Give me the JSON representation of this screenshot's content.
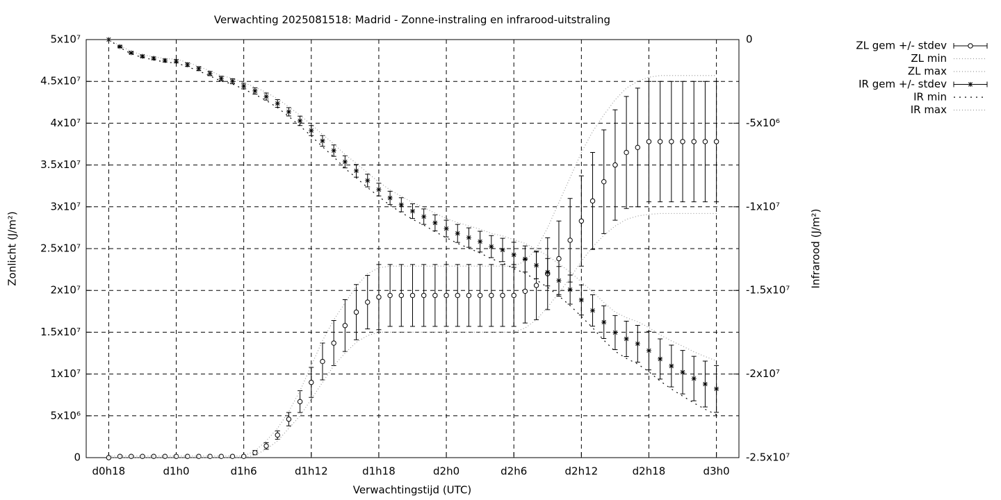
{
  "chart_data": {
    "type": "errorbar",
    "title": "Verwachting 2025081518: Madrid - Zonne-instraling en infrarood-uitstraling",
    "xlabel": "Verwachtingstijd (UTC)",
    "ylabel": "Zonlicht (J/m²)",
    "y2label": "Infrarood (J/m²)",
    "grid": true,
    "legend": "outside-top-right",
    "xlim": [
      16,
      74
    ],
    "xticks": [
      {
        "value": 18,
        "label": "d0h18"
      },
      {
        "value": 24,
        "label": "d1h0"
      },
      {
        "value": 30,
        "label": "d1h6"
      },
      {
        "value": 36,
        "label": "d1h12"
      },
      {
        "value": 42,
        "label": "d1h18"
      },
      {
        "value": 48,
        "label": "d2h0"
      },
      {
        "value": 54,
        "label": "d2h6"
      },
      {
        "value": 60,
        "label": "d2h12"
      },
      {
        "value": 66,
        "label": "d2h18"
      },
      {
        "value": 72,
        "label": "d3h0"
      }
    ],
    "ylim": [
      0,
      50000000
    ],
    "yticks": [
      0,
      {
        "value": 5000000,
        "label": "5x10⁶"
      },
      {
        "value": 10000000,
        "label": "1x10⁷"
      },
      {
        "value": 15000000,
        "label": "1.5x10⁷"
      },
      {
        "value": 20000000,
        "label": "2x10⁷"
      },
      {
        "value": 25000000,
        "label": "2.5x10⁷"
      },
      {
        "value": 30000000,
        "label": "3x10⁷"
      },
      {
        "value": 35000000,
        "label": "3.5x10⁷"
      },
      {
        "value": 40000000,
        "label": "4x10⁷"
      },
      {
        "value": 45000000,
        "label": "4.5x10⁷"
      },
      {
        "value": 50000000,
        "label": "5x10⁷"
      }
    ],
    "y2lim": [
      -25000000,
      0
    ],
    "y2ticks": [
      0,
      {
        "value": -5000000,
        "label": "-5x10⁶"
      },
      {
        "value": -10000000,
        "label": "-1x10⁷"
      },
      {
        "value": -15000000,
        "label": "-1.5x10⁷"
      },
      {
        "value": -20000000,
        "label": "-2x10⁷"
      },
      {
        "value": -25000000,
        "label": "-2.5x10⁷"
      }
    ],
    "x": [
      18,
      19,
      20,
      21,
      22,
      23,
      24,
      25,
      26,
      27,
      28,
      29,
      30,
      31,
      32,
      33,
      34,
      35,
      36,
      37,
      38,
      39,
      40,
      41,
      42,
      43,
      44,
      45,
      46,
      47,
      48,
      49,
      50,
      51,
      52,
      53,
      54,
      55,
      56,
      57,
      58,
      59,
      60,
      61,
      62,
      63,
      64,
      65,
      66,
      67,
      68,
      69,
      70,
      71,
      72
    ],
    "series": [
      {
        "name": "ZL gem +/- stdev",
        "kind": "errorbar",
        "marker": "circle",
        "color": "#000000",
        "values": [
          0,
          150000,
          150000,
          150000,
          150000,
          150000,
          150000,
          150000,
          150000,
          150000,
          150000,
          150000,
          150000,
          600000,
          1400000,
          2700000,
          4600000,
          6700000,
          9000000,
          11500000,
          13700000,
          15800000,
          17400000,
          18600000,
          19200000,
          19400000,
          19400000,
          19400000,
          19400000,
          19400000,
          19400000,
          19400000,
          19400000,
          19400000,
          19400000,
          19400000,
          19400000,
          19900000,
          20600000,
          22000000,
          23800000,
          26000000,
          28300000,
          30700000,
          33000000,
          35000000,
          36500000,
          37100000,
          37800000,
          37800000,
          37800000,
          37800000,
          37800000,
          37800000,
          37800000
        ],
        "errors": [
          0,
          0,
          0,
          0,
          0,
          0,
          0,
          0,
          0,
          0,
          0,
          0,
          0,
          250000,
          400000,
          500000,
          800000,
          1300000,
          1800000,
          2200000,
          2700000,
          3100000,
          3300000,
          3200000,
          3900000,
          3700000,
          3700000,
          3700000,
          3700000,
          3700000,
          3700000,
          3700000,
          3700000,
          3700000,
          3700000,
          3700000,
          3700000,
          3800000,
          4100000,
          4300000,
          4500000,
          5000000,
          5400000,
          5800000,
          6200000,
          6600000,
          6700000,
          7100000,
          7200000,
          7200000,
          7200000,
          7200000,
          7200000,
          7200000,
          7200000
        ]
      },
      {
        "name": "ZL min",
        "kind": "line",
        "linestyle": "dotted",
        "color": "#999999",
        "values": [
          0,
          0,
          0,
          0,
          0,
          0,
          0,
          0,
          0,
          0,
          0,
          0,
          0,
          300000,
          1000000,
          2000000,
          3500000,
          5000000,
          7000000,
          9000000,
          11000000,
          12500000,
          13800000,
          14600000,
          15000000,
          15000000,
          15000000,
          15000000,
          15000000,
          15000000,
          15000000,
          15000000,
          15000000,
          15000000,
          15000000,
          15000000,
          15000000,
          15500000,
          16500000,
          18000000,
          19700000,
          21500000,
          23500000,
          25200000,
          26600000,
          27700000,
          28500000,
          28900000,
          29100000,
          29200000,
          29200000,
          29200000,
          29200000,
          29200000,
          29200000
        ]
      },
      {
        "name": "ZL max",
        "kind": "line",
        "linestyle": "dotted",
        "color": "#999999",
        "values": [
          200000,
          200000,
          200000,
          200000,
          200000,
          200000,
          200000,
          200000,
          200000,
          200000,
          200000,
          200000,
          200000,
          800000,
          2000000,
          3500000,
          5500000,
          8000000,
          11000000,
          14000000,
          16500000,
          18500000,
          20500000,
          22000000,
          22700000,
          22900000,
          22900000,
          22900000,
          22900000,
          22900000,
          22900000,
          22900000,
          22900000,
          22900000,
          22900000,
          22900000,
          22900000,
          23500000,
          25000000,
          27500000,
          30500000,
          33500000,
          36500000,
          39000000,
          41000000,
          42800000,
          44200000,
          45000000,
          45500000,
          45700000,
          45700000,
          45700000,
          45700000,
          45700000,
          45700000
        ]
      },
      {
        "name": "IR gem +/- stdev",
        "kind": "errorbar",
        "marker": "star",
        "axis": "y2",
        "color": "#000000",
        "values": [
          0,
          -420000,
          -790000,
          -1000000,
          -1120000,
          -1250000,
          -1290000,
          -1500000,
          -1740000,
          -2030000,
          -2330000,
          -2490000,
          -2780000,
          -3070000,
          -3410000,
          -3820000,
          -4320000,
          -4860000,
          -5440000,
          -6060000,
          -6640000,
          -7310000,
          -7850000,
          -8430000,
          -8970000,
          -9470000,
          -9880000,
          -10260000,
          -10590000,
          -10960000,
          -11300000,
          -11590000,
          -11840000,
          -12080000,
          -12380000,
          -12580000,
          -12870000,
          -13120000,
          -13500000,
          -13910000,
          -14410000,
          -14950000,
          -15570000,
          -16200000,
          -16900000,
          -17520000,
          -17900000,
          -18190000,
          -18600000,
          -19100000,
          -19520000,
          -19890000,
          -20270000,
          -20600000,
          -20890000
        ],
        "errors": [
          0,
          50000,
          60000,
          70000,
          80000,
          90000,
          100000,
          110000,
          120000,
          130000,
          140000,
          150000,
          170000,
          190000,
          210000,
          230000,
          250000,
          280000,
          300000,
          320000,
          340000,
          360000,
          380000,
          380000,
          380000,
          400000,
          420000,
          440000,
          460000,
          480000,
          500000,
          540000,
          580000,
          620000,
          660000,
          700000,
          750000,
          780000,
          800000,
          820000,
          840000,
          870000,
          900000,
          940000,
          980000,
          1020000,
          1060000,
          1100000,
          1150000,
          1200000,
          1250000,
          1300000,
          1330000,
          1370000,
          1400000
        ]
      },
      {
        "name": "IR min",
        "kind": "line",
        "linestyle": "coarse-dotted",
        "axis": "y2",
        "color": "#000000",
        "values": [
          0,
          -475000,
          -856000,
          -1077000,
          -1208000,
          -1349000,
          -1400000,
          -1621000,
          -1872000,
          -2173000,
          -2484000,
          -2655000,
          -2967000,
          -3279000,
          -3641000,
          -4073000,
          -4595000,
          -5168000,
          -5770000,
          -6412000,
          -7014000,
          -7706000,
          -8268000,
          -8848000,
          -9388000,
          -9910000,
          -10342000,
          -10744000,
          -11096000,
          -11488000,
          -11850000,
          -12184000,
          -12478000,
          -12762000,
          -13106000,
          -13350000,
          -13695000,
          -13978000,
          -14380000,
          -14812000,
          -15334000,
          -15907000,
          -16560000,
          -17234000,
          -17978000,
          -18642000,
          -19066000,
          -19400000,
          -19865000,
          -20420000,
          -20895000,
          -21320000,
          -21733000,
          -22107000,
          -22430000
        ]
      },
      {
        "name": "IR max",
        "kind": "line",
        "linestyle": "dotted",
        "axis": "y2",
        "color": "#999999",
        "values": [
          0,
          -360000,
          -718000,
          -916000,
          -1024000,
          -1142000,
          -1170000,
          -1368000,
          -1596000,
          -1874000,
          -2162000,
          -2310000,
          -2576000,
          -2842000,
          -3158000,
          -3544000,
          -4020000,
          -4524000,
          -5080000,
          -5676000,
          -6232000,
          -6878000,
          -7394000,
          -7974000,
          -8514000,
          -8990000,
          -9376000,
          -9732000,
          -10038000,
          -10384000,
          -10700000,
          -10942000,
          -11144000,
          -11336000,
          -11588000,
          -11740000,
          -11970000,
          -12184000,
          -12540000,
          -12926000,
          -13402000,
          -13906000,
          -14490000,
          -15072000,
          -15724000,
          -16296000,
          -16628000,
          -16870000,
          -17220000,
          -17660000,
          -18020000,
          -18330000,
          -18674000,
          -18956000,
          -19210000
        ]
      }
    ]
  }
}
